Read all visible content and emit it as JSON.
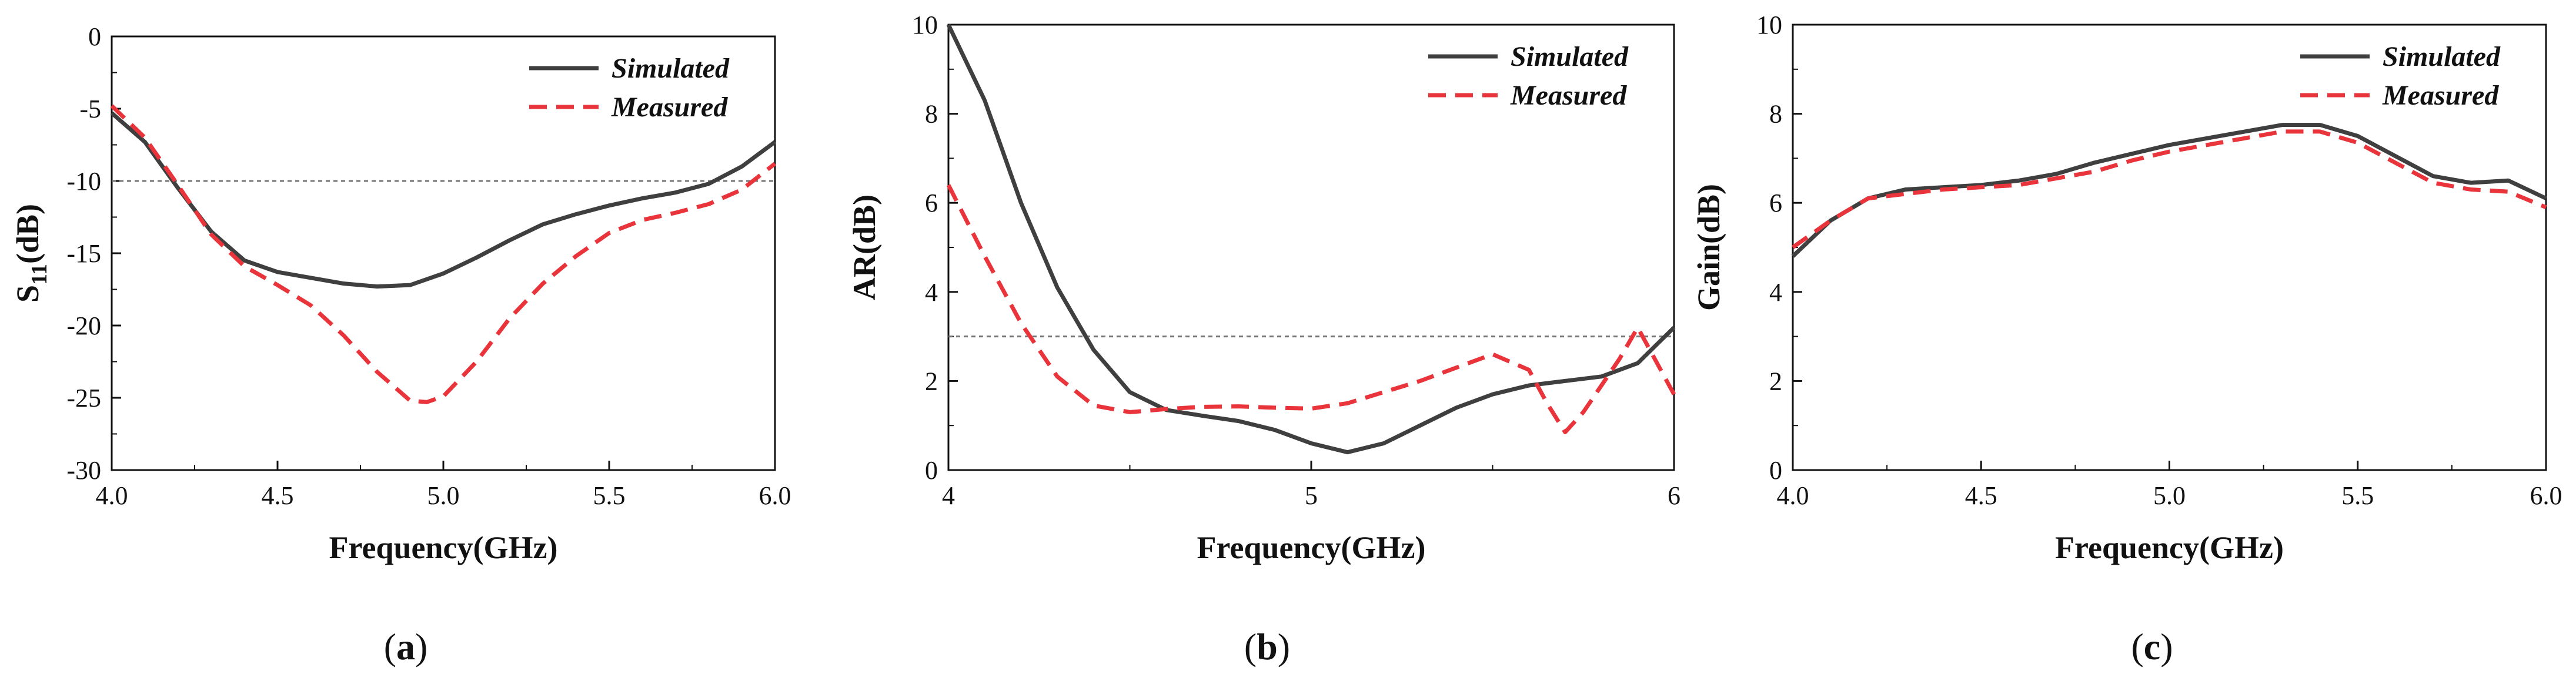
{
  "colors": {
    "simulated": "#3f3f3f",
    "measured": "#e8343a",
    "threshold": "#777777",
    "axis": "#111111"
  },
  "chart_data": [
    {
      "type": "line",
      "caption_letter": "a",
      "xlabel": "Frequency(GHz)",
      "ylabel_main": "S",
      "ylabel_sub": "11",
      "ylabel_tail": "(dB)",
      "xlim": [
        4.0,
        6.0
      ],
      "ylim": [
        -30,
        0
      ],
      "xticks": [
        "4.0",
        "4.5",
        "5.0",
        "5.5",
        "6.0"
      ],
      "yticks": [
        "0",
        "-5",
        "-10",
        "-15",
        "-20",
        "-25",
        "-30"
      ],
      "threshold": -10,
      "legend": [
        "Simulated",
        "Measured"
      ],
      "series": [
        {
          "name": "Simulated",
          "x": [
            4.0,
            4.1,
            4.2,
            4.3,
            4.4,
            4.5,
            4.6,
            4.7,
            4.8,
            4.9,
            5.0,
            5.1,
            5.2,
            5.3,
            5.4,
            5.5,
            5.6,
            5.7,
            5.8,
            5.9,
            6.0
          ],
          "y": [
            -5.3,
            -7.3,
            -10.5,
            -13.5,
            -15.5,
            -16.3,
            -16.7,
            -17.1,
            -17.3,
            -17.2,
            -16.4,
            -15.3,
            -14.1,
            -13.0,
            -12.3,
            -11.7,
            -11.2,
            -10.8,
            -10.2,
            -9.0,
            -7.3
          ]
        },
        {
          "name": "Measured",
          "x": [
            4.0,
            4.1,
            4.2,
            4.3,
            4.4,
            4.5,
            4.6,
            4.7,
            4.8,
            4.9,
            4.95,
            5.0,
            5.1,
            5.2,
            5.3,
            5.4,
            5.5,
            5.6,
            5.7,
            5.8,
            5.9,
            6.0
          ],
          "y": [
            -4.8,
            -7.0,
            -10.3,
            -13.7,
            -15.9,
            -17.2,
            -18.6,
            -20.7,
            -23.2,
            -25.2,
            -25.3,
            -24.9,
            -22.5,
            -19.5,
            -17.1,
            -15.2,
            -13.6,
            -12.7,
            -12.2,
            -11.6,
            -10.6,
            -8.8
          ]
        }
      ]
    },
    {
      "type": "line",
      "caption_letter": "b",
      "xlabel": "Frequency(GHz)",
      "ylabel_main": "AR(dB)",
      "ylabel_sub": "",
      "ylabel_tail": "",
      "xlim": [
        4,
        6
      ],
      "ylim": [
        0,
        10
      ],
      "xticks": [
        "4",
        "5",
        "6"
      ],
      "yticks": [
        "0",
        "2",
        "4",
        "6",
        "8",
        "10"
      ],
      "threshold": 3,
      "legend": [
        "Simulated",
        "Measured"
      ],
      "series": [
        {
          "name": "Simulated",
          "x": [
            4.0,
            4.1,
            4.2,
            4.3,
            4.4,
            4.5,
            4.6,
            4.7,
            4.8,
            4.9,
            5.0,
            5.1,
            5.2,
            5.3,
            5.4,
            5.5,
            5.6,
            5.7,
            5.8,
            5.9,
            6.0
          ],
          "y": [
            10.0,
            8.3,
            6.0,
            4.1,
            2.7,
            1.75,
            1.35,
            1.22,
            1.1,
            0.9,
            0.6,
            0.4,
            0.6,
            1.0,
            1.4,
            1.7,
            1.9,
            2.0,
            2.1,
            2.4,
            3.2
          ]
        },
        {
          "name": "Measured",
          "x": [
            4.0,
            4.1,
            4.2,
            4.3,
            4.4,
            4.5,
            4.6,
            4.7,
            4.8,
            4.9,
            5.0,
            5.1,
            5.2,
            5.3,
            5.4,
            5.5,
            5.6,
            5.65,
            5.7,
            5.75,
            5.8,
            5.85,
            5.9,
            6.0
          ],
          "y": [
            6.4,
            4.8,
            3.3,
            2.1,
            1.45,
            1.3,
            1.37,
            1.42,
            1.43,
            1.4,
            1.38,
            1.5,
            1.75,
            2.0,
            2.3,
            2.6,
            2.25,
            1.5,
            0.85,
            1.3,
            1.9,
            2.5,
            3.2,
            1.7
          ]
        }
      ]
    },
    {
      "type": "line",
      "caption_letter": "c",
      "xlabel": "Frequency(GHz)",
      "ylabel_main": "Gain(dB)",
      "ylabel_sub": "",
      "ylabel_tail": "",
      "xlim": [
        4.0,
        6.0
      ],
      "ylim": [
        0,
        10
      ],
      "xticks": [
        "4.0",
        "4.5",
        "5.0",
        "5.5",
        "6.0"
      ],
      "yticks": [
        "0",
        "2",
        "4",
        "6",
        "8",
        "10"
      ],
      "threshold": null,
      "legend": [
        "Simulated",
        "Measured"
      ],
      "series": [
        {
          "name": "Simulated",
          "x": [
            4.0,
            4.1,
            4.2,
            4.3,
            4.4,
            4.5,
            4.6,
            4.7,
            4.8,
            4.9,
            5.0,
            5.1,
            5.2,
            5.3,
            5.4,
            5.5,
            5.6,
            5.7,
            5.8,
            5.9,
            6.0
          ],
          "y": [
            4.8,
            5.6,
            6.1,
            6.3,
            6.35,
            6.4,
            6.5,
            6.65,
            6.9,
            7.1,
            7.3,
            7.45,
            7.6,
            7.75,
            7.75,
            7.5,
            7.05,
            6.6,
            6.45,
            6.5,
            6.1
          ]
        },
        {
          "name": "Measured",
          "x": [
            4.0,
            4.1,
            4.2,
            4.3,
            4.4,
            4.5,
            4.6,
            4.7,
            4.8,
            4.9,
            5.0,
            5.1,
            5.2,
            5.3,
            5.4,
            5.5,
            5.6,
            5.7,
            5.8,
            5.9,
            6.0
          ],
          "y": [
            5.0,
            5.6,
            6.1,
            6.2,
            6.3,
            6.35,
            6.4,
            6.55,
            6.7,
            6.95,
            7.15,
            7.3,
            7.45,
            7.6,
            7.6,
            7.35,
            6.9,
            6.45,
            6.3,
            6.25,
            5.9
          ]
        }
      ]
    }
  ]
}
